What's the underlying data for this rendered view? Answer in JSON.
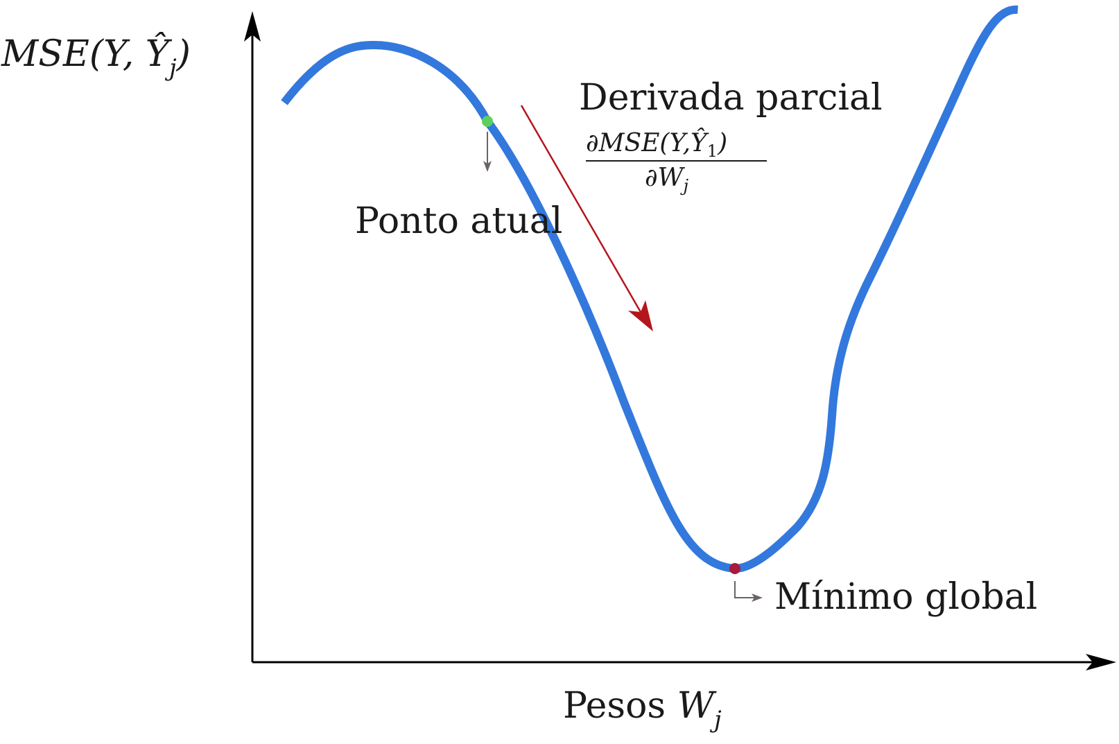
{
  "diagram": {
    "y_axis_label": {
      "base": "MSE(Y, Ŷ",
      "subscript": "j",
      "close": ")"
    },
    "x_axis_label": {
      "text": "Pesos ",
      "var": "W",
      "subscript": "j"
    },
    "current_point_label": "Ponto atual",
    "global_min_label": "Mínimo global",
    "derivative_title": "Derivada parcial",
    "derivative_fraction": {
      "numerator": "∂MSE(Y,Ŷ",
      "numerator_subscript": "1",
      "numerator_close": ")",
      "denominator": "∂W",
      "denominator_subscript": "j"
    },
    "colors": {
      "curve": "#3378dc",
      "current_point": "#5ccf5c",
      "global_min": "#a8193c",
      "derivative_arrow": "#b3161c",
      "pointer_arrows": "#6b6366",
      "axes": "#000000"
    }
  }
}
